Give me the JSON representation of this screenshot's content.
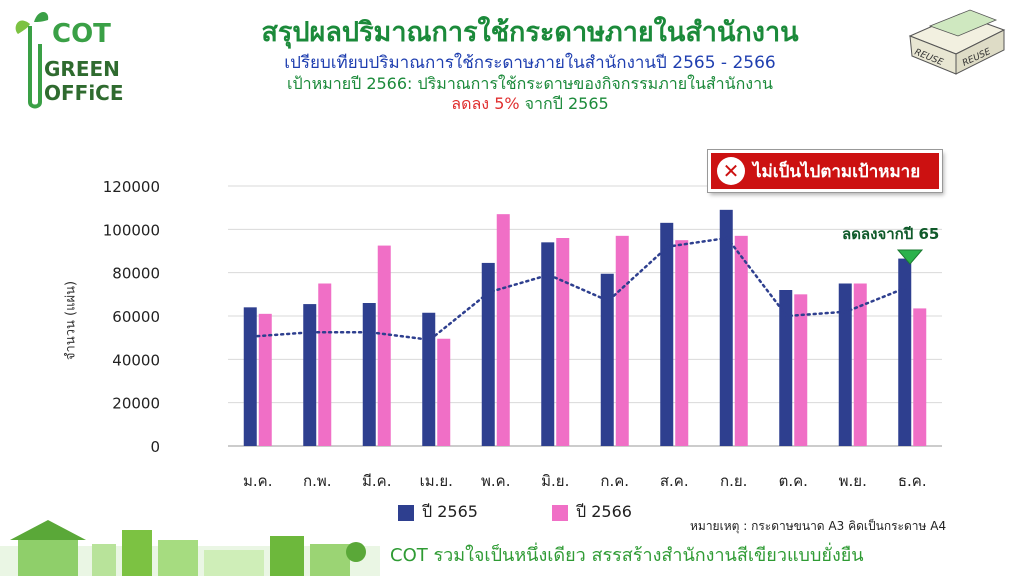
{
  "logo": {
    "line1": "COT",
    "line2": "GREEN",
    "line3": "OFFiCE"
  },
  "reuse_image": {
    "label_left": "REUSE",
    "label_right": "REUSE"
  },
  "header": {
    "title": "สรุปผลปริมาณการใช้กระดาษภายในสำนักงาน",
    "subtitle": "เปรียบเทียบปริมาณการใช้กระดาษภายในสำนักงานปี 2565 - 2566",
    "target": "เป้าหมายปี 2566: ปริมาณการใช้กระดาษของกิจกรรมภายในสำนักงาน",
    "target_red": "ลดลง 5%",
    "target_rest": "จากปี 2565"
  },
  "badge": {
    "icon": "x-icon",
    "text": "ไม่เป็นไปตามเป้าหมาย"
  },
  "annotation": {
    "text": "ลดลงจากปี 65"
  },
  "note": "หมายเหตุ : กระดาษขนาด A3 คิดเป็นกระดาษ A4",
  "footer": "COT รวมใจเป็นหนึ่งเดียว สรรสร้างสำนักงานสีเขียวแบบยั่งยืน",
  "colors": {
    "series_2565": "#2e3f8f",
    "series_2566": "#f06fc6",
    "trend": "#2e3f8f",
    "title_green": "#1b8a3a"
  },
  "chart_data": {
    "type": "bar",
    "ylabel": "จำนวน (แผ่น)",
    "ylim": [
      0,
      120000
    ],
    "yticks": [
      0,
      20000,
      40000,
      60000,
      80000,
      100000,
      120000
    ],
    "grid": true,
    "legend_position": "bottom",
    "categories": [
      "ม.ค.",
      "ก.พ.",
      "มี.ค.",
      "เม.ย.",
      "พ.ค.",
      "มิ.ย.",
      "ก.ค.",
      "ส.ค.",
      "ก.ย.",
      "ต.ค.",
      "พ.ย.",
      "ธ.ค."
    ],
    "series": [
      {
        "name": "ปี 2565",
        "values": [
          64000,
          65500,
          66000,
          61500,
          84500,
          94000,
          79500,
          103000,
          109000,
          72000,
          75000,
          86500
        ]
      },
      {
        "name": "ปี 2566",
        "values": [
          61000,
          75000,
          92500,
          49500,
          107000,
          96000,
          97000,
          95000,
          97000,
          70000,
          75000,
          63500
        ]
      }
    ],
    "trendline": {
      "series": "ปี 2565",
      "style": "dotted",
      "values": [
        50500,
        52500,
        52500,
        49000,
        71000,
        79000,
        67000,
        92000,
        96000,
        60000,
        62000,
        73000
      ]
    }
  }
}
